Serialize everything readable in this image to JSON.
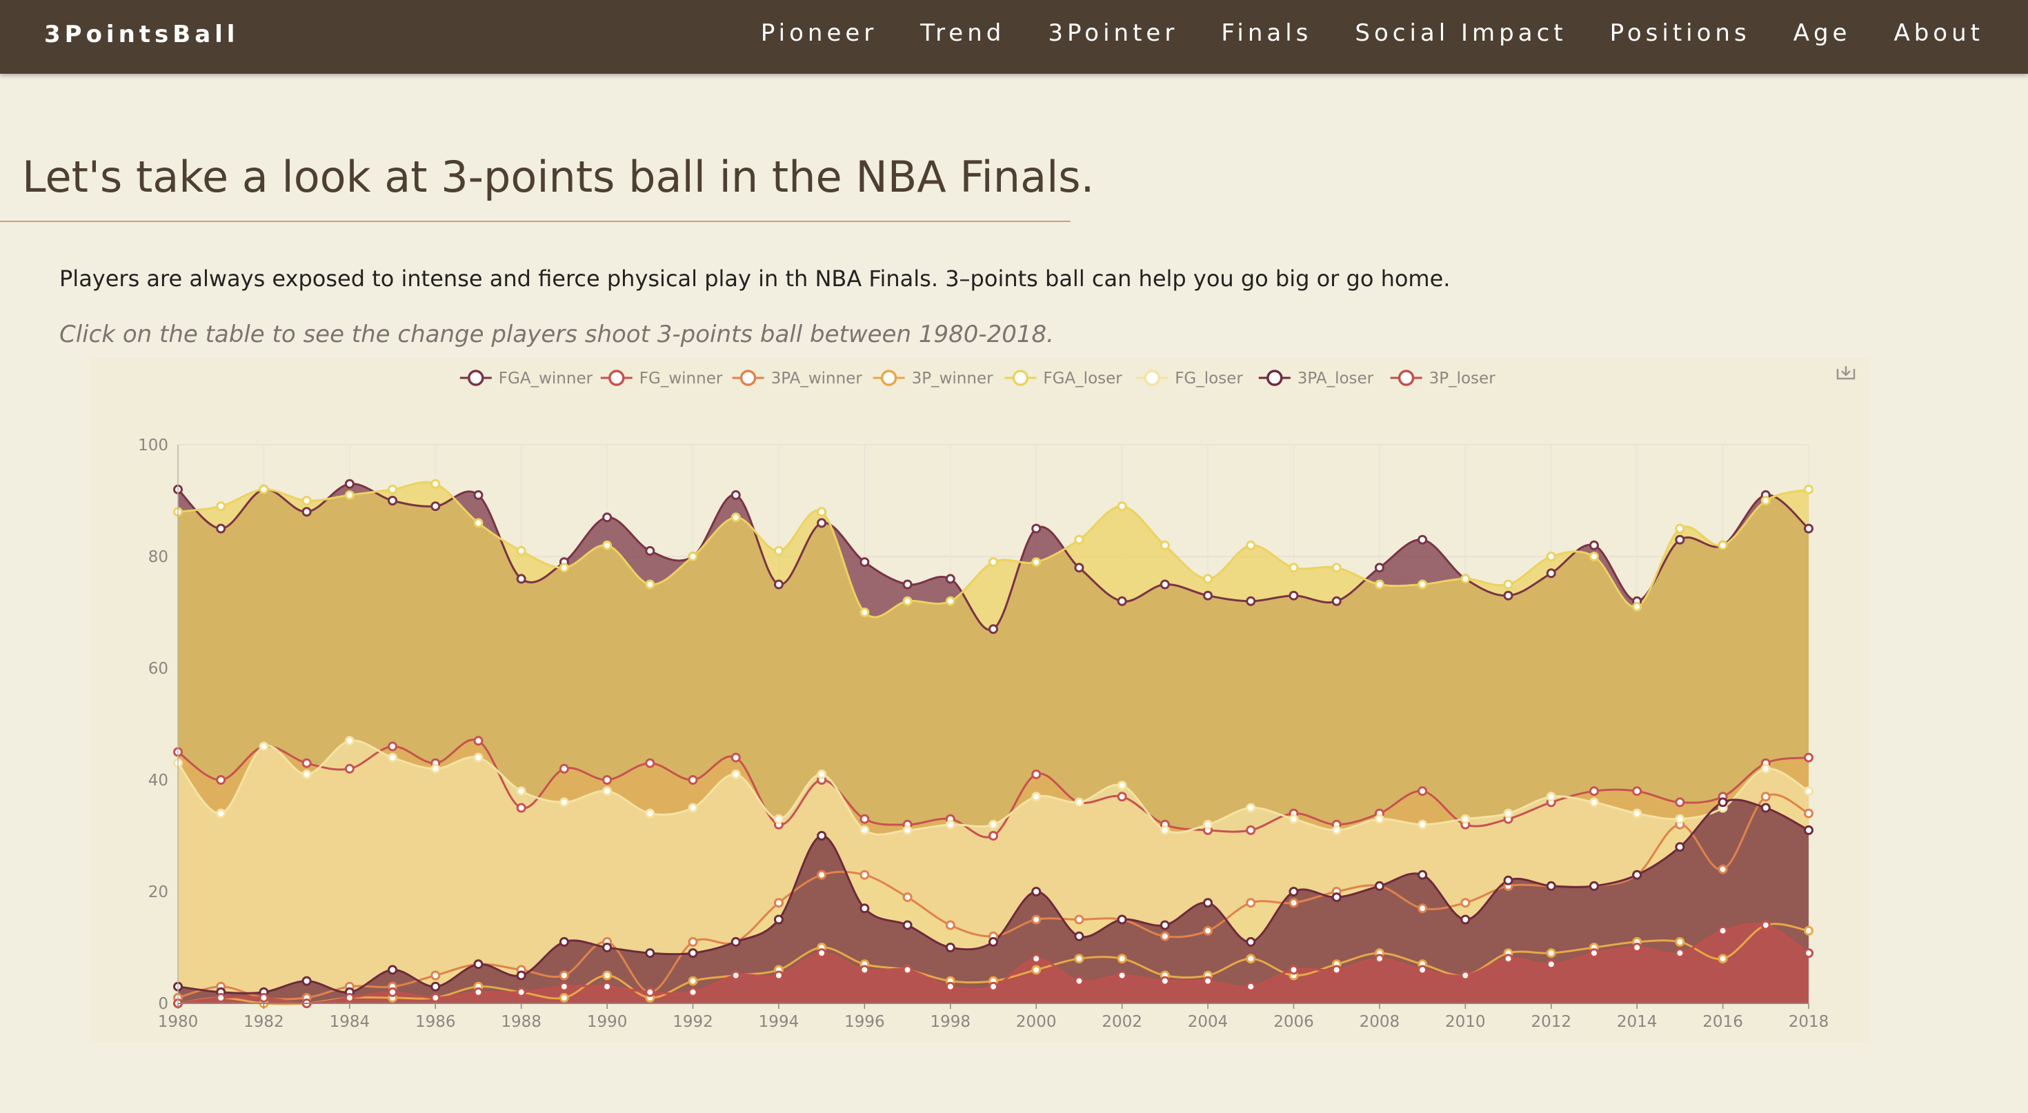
{
  "brand": "3PointsBall",
  "nav": [
    "Pioneer",
    "Trend",
    "3Pointer",
    "Finals",
    "Social Impact",
    "Positions",
    "Age",
    "About"
  ],
  "title": "Let's take a look at 3-points ball in the NBA Finals.",
  "lead": "Players are always exposed to intense and fierce physical play in th NBA Finals. 3–points ball can help you go big or go home.",
  "hint": "Click on the table to see the change players shoot 3-points ball between 1980-2018.",
  "icons": {
    "download": "download-icon"
  },
  "chart_data": {
    "type": "area",
    "title": "",
    "xlabel": "",
    "ylabel": "",
    "ylim": [
      0,
      100
    ],
    "yticks": [
      0,
      20,
      40,
      60,
      80,
      100
    ],
    "xtick_labels": [
      "1980",
      "1982",
      "1984",
      "1986",
      "1988",
      "1990",
      "1992",
      "1994",
      "1996",
      "1998",
      "2000",
      "2002",
      "2004",
      "2006",
      "2008",
      "2010",
      "2012",
      "2014",
      "2016",
      "2018"
    ],
    "legend_position": "top-center",
    "x": [
      1980,
      1981,
      1982,
      1983,
      1984,
      1985,
      1986,
      1987,
      1988,
      1989,
      1990,
      1991,
      1992,
      1993,
      1994,
      1995,
      1996,
      1997,
      1998,
      1999,
      2000,
      2001,
      2002,
      2003,
      2004,
      2005,
      2006,
      2007,
      2008,
      2009,
      2010,
      2011,
      2012,
      2013,
      2014,
      2015,
      2016,
      2017,
      2018
    ],
    "series": [
      {
        "name": "FGA_winner",
        "color": "#7a3345",
        "values": [
          92,
          85,
          92,
          88,
          93,
          90,
          89,
          91,
          76,
          79,
          87,
          81,
          80,
          91,
          75,
          86,
          79,
          75,
          76,
          67,
          85,
          78,
          72,
          75,
          73,
          72,
          73,
          72,
          78,
          83,
          76,
          73,
          77,
          82,
          72,
          83,
          82,
          91,
          85
        ]
      },
      {
        "name": "FG_winner",
        "color": "#c8524f",
        "values": [
          45,
          40,
          46,
          43,
          42,
          46,
          43,
          47,
          35,
          42,
          40,
          43,
          40,
          44,
          32,
          40,
          33,
          32,
          33,
          30,
          41,
          36,
          37,
          32,
          31,
          31,
          34,
          32,
          34,
          38,
          32,
          33,
          36,
          38,
          38,
          36,
          37,
          43,
          44
        ]
      },
      {
        "name": "3PA_winner",
        "color": "#e0824c",
        "values": [
          1,
          3,
          1,
          1,
          3,
          3,
          5,
          7,
          6,
          5,
          11,
          2,
          11,
          11,
          18,
          23,
          23,
          19,
          14,
          12,
          15,
          15,
          15,
          12,
          13,
          18,
          18,
          20,
          21,
          17,
          18,
          21,
          21,
          21,
          23,
          32,
          24,
          37,
          34
        ]
      },
      {
        "name": "3P_winner",
        "color": "#e9a746",
        "values": [
          0,
          1,
          0,
          0,
          1,
          1,
          1,
          3,
          2,
          1,
          5,
          1,
          4,
          5,
          6,
          10,
          7,
          6,
          4,
          4,
          6,
          8,
          8,
          5,
          5,
          8,
          5,
          7,
          9,
          7,
          5,
          9,
          9,
          10,
          11,
          11,
          8,
          14,
          13
        ]
      },
      {
        "name": "FGA_loser",
        "color": "#ecd260",
        "values": [
          88,
          89,
          92,
          90,
          91,
          92,
          93,
          86,
          81,
          78,
          82,
          75,
          80,
          87,
          81,
          88,
          70,
          72,
          72,
          79,
          79,
          83,
          89,
          82,
          76,
          82,
          78,
          78,
          75,
          75,
          76,
          75,
          80,
          80,
          71,
          85,
          82,
          90,
          92
        ]
      },
      {
        "name": "FG_loser",
        "color": "#f5e3a4",
        "values": [
          43,
          34,
          46,
          41,
          47,
          44,
          42,
          44,
          38,
          36,
          38,
          34,
          35,
          41,
          33,
          41,
          31,
          31,
          32,
          32,
          37,
          36,
          39,
          31,
          32,
          35,
          33,
          31,
          33,
          32,
          33,
          34,
          37,
          36,
          34,
          33,
          35,
          42,
          38
        ]
      },
      {
        "name": "3PA_loser",
        "color": "#6e2a3c",
        "values": [
          3,
          2,
          2,
          4,
          2,
          6,
          3,
          7,
          5,
          11,
          10,
          9,
          9,
          11,
          15,
          30,
          17,
          14,
          10,
          11,
          20,
          12,
          15,
          14,
          18,
          11,
          20,
          19,
          21,
          23,
          15,
          22,
          21,
          21,
          23,
          28,
          36,
          35,
          31
        ]
      },
      {
        "name": "3P_loser",
        "color": "#c0504d",
        "values": [
          0,
          1,
          1,
          0,
          1,
          2,
          1,
          2,
          2,
          3,
          3,
          2,
          2,
          5,
          5,
          9,
          6,
          6,
          3,
          3,
          8,
          4,
          5,
          4,
          4,
          3,
          6,
          6,
          8,
          6,
          5,
          8,
          7,
          9,
          10,
          9,
          13,
          14,
          9
        ]
      }
    ]
  }
}
